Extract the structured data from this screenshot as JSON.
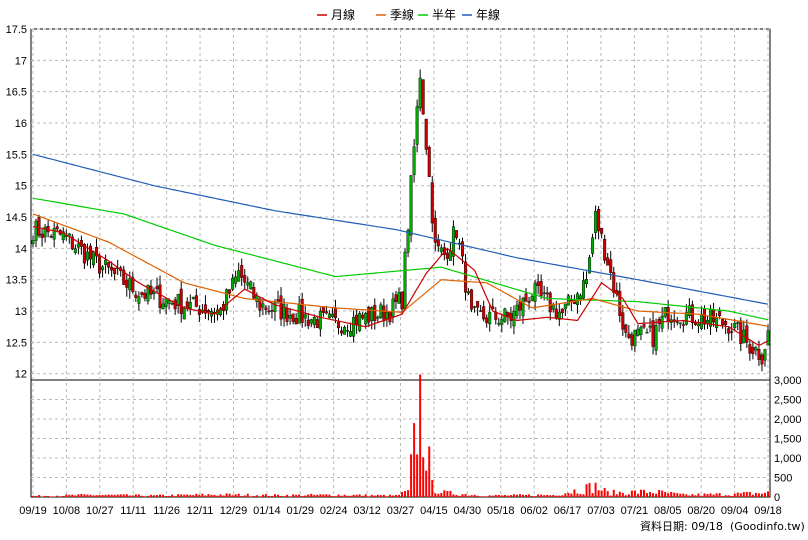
{
  "chart_data": {
    "type": "candlestick",
    "legend": [
      {
        "name": "月線",
        "color": "#cc0000"
      },
      {
        "name": "季線",
        "color": "#e06000"
      },
      {
        "name": "半年",
        "color": "#00cc00"
      },
      {
        "name": "年線",
        "color": "#1f5fb8"
      }
    ],
    "price_axis": {
      "ylim": [
        11.9,
        17.5
      ],
      "ticks": [
        "17.5",
        "17",
        "16.5",
        "16",
        "15.5",
        "15",
        "14.5",
        "14",
        "13.5",
        "13",
        "12.5",
        "12"
      ]
    },
    "volume_axis": {
      "ylim": [
        0,
        3000
      ],
      "ticks": [
        "3,000",
        "2,500",
        "2,000",
        "1,500",
        "1,000",
        "500",
        "0"
      ]
    },
    "x_labels": [
      "09/19",
      "10/08",
      "10/27",
      "11/11",
      "11/26",
      "12/11",
      "12/29",
      "01/14",
      "01/29",
      "02/24",
      "03/12",
      "03/27",
      "04/15",
      "04/30",
      "05/18",
      "06/02",
      "06/17",
      "07/03",
      "07/21",
      "08/05",
      "08/20",
      "09/04",
      "09/18"
    ],
    "grid": true,
    "up_color": "#00aa00",
    "down_color": "#cc0000",
    "volume_color": "#ff0000",
    "candle_count": 244,
    "price_path": [
      [
        0,
        14.3
      ],
      [
        10,
        14.2
      ],
      [
        20,
        13.8
      ],
      [
        35,
        13.3
      ],
      [
        50,
        13.1
      ],
      [
        62,
        13.0
      ],
      [
        68,
        13.6
      ],
      [
        75,
        13.1
      ],
      [
        90,
        12.9
      ],
      [
        100,
        12.8
      ],
      [
        110,
        12.9
      ],
      [
        118,
        13.0
      ],
      [
        122,
        13.2
      ],
      [
        128,
        16.8
      ],
      [
        133,
        14.0
      ],
      [
        136,
        13.9
      ],
      [
        140,
        14.3
      ],
      [
        145,
        12.9
      ],
      [
        158,
        12.9
      ],
      [
        165,
        13.3
      ],
      [
        175,
        12.95
      ],
      [
        183,
        13.5
      ],
      [
        186,
        14.5
      ],
      [
        190,
        13.8
      ],
      [
        196,
        12.6
      ],
      [
        205,
        12.6
      ],
      [
        210,
        13.0
      ],
      [
        230,
        12.8
      ],
      [
        236,
        12.5
      ],
      [
        241,
        12.3
      ],
      [
        244,
        12.8
      ]
    ],
    "volume_path": [
      [
        0,
        30
      ],
      [
        20,
        60
      ],
      [
        40,
        40
      ],
      [
        60,
        70
      ],
      [
        80,
        50
      ],
      [
        100,
        60
      ],
      [
        120,
        40
      ],
      [
        124,
        150
      ],
      [
        128,
        2700
      ],
      [
        132,
        300
      ],
      [
        136,
        120
      ],
      [
        150,
        40
      ],
      [
        172,
        60
      ],
      [
        186,
        300
      ],
      [
        190,
        120
      ],
      [
        205,
        150
      ],
      [
        215,
        60
      ],
      [
        230,
        80
      ],
      [
        244,
        120
      ]
    ],
    "ma_month": [
      [
        0,
        14.35
      ],
      [
        10,
        14.25
      ],
      [
        25,
        13.8
      ],
      [
        35,
        13.45
      ],
      [
        50,
        13.05
      ],
      [
        60,
        12.95
      ],
      [
        70,
        13.35
      ],
      [
        80,
        13.1
      ],
      [
        95,
        12.9
      ],
      [
        110,
        12.75
      ],
      [
        122,
        12.95
      ],
      [
        130,
        13.6
      ],
      [
        137,
        14.0
      ],
      [
        146,
        13.65
      ],
      [
        152,
        13.0
      ],
      [
        160,
        12.85
      ],
      [
        170,
        12.9
      ],
      [
        180,
        12.85
      ],
      [
        188,
        13.45
      ],
      [
        195,
        13.2
      ],
      [
        200,
        12.8
      ],
      [
        215,
        12.85
      ],
      [
        230,
        12.75
      ],
      [
        240,
        12.45
      ],
      [
        244,
        12.55
      ]
    ],
    "ma_quarter": [
      [
        0,
        14.55
      ],
      [
        25,
        14.1
      ],
      [
        50,
        13.45
      ],
      [
        70,
        13.2
      ],
      [
        100,
        13.05
      ],
      [
        122,
        12.98
      ],
      [
        135,
        13.5
      ],
      [
        150,
        13.45
      ],
      [
        165,
        13.05
      ],
      [
        185,
        13.2
      ],
      [
        200,
        13.0
      ],
      [
        220,
        12.95
      ],
      [
        244,
        12.75
      ]
    ],
    "ma_half": [
      [
        0,
        14.8
      ],
      [
        30,
        14.55
      ],
      [
        60,
        14.05
      ],
      [
        100,
        13.55
      ],
      [
        135,
        13.7
      ],
      [
        170,
        13.2
      ],
      [
        200,
        13.15
      ],
      [
        230,
        13.0
      ],
      [
        244,
        12.85
      ]
    ],
    "ma_year": [
      [
        0,
        15.5
      ],
      [
        40,
        15.0
      ],
      [
        80,
        14.6
      ],
      [
        120,
        14.3
      ],
      [
        160,
        13.85
      ],
      [
        200,
        13.5
      ],
      [
        244,
        13.1
      ]
    ],
    "footer": "資料日期: 09/18",
    "source": "(Goodinfo.tw)"
  }
}
